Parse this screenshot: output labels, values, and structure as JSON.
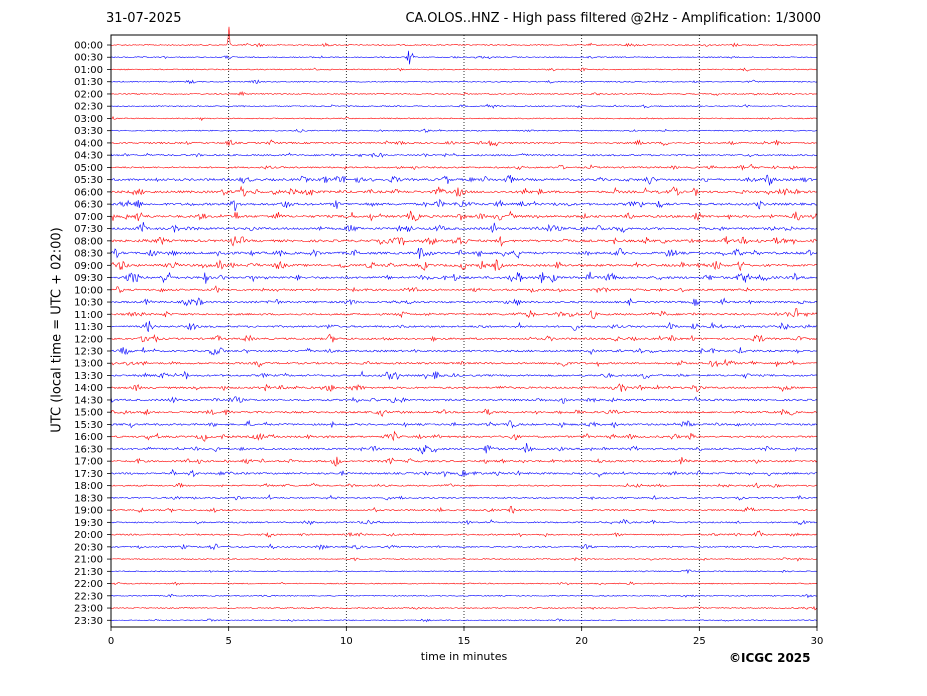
{
  "header": {
    "date": "31-07-2025",
    "title": "CA.OLOS..HNZ - High pass filtered @2Hz - Amplification: 1/3000"
  },
  "footer": {
    "copyright": "©ICGC 2025"
  },
  "colors": {
    "trace_a": "#ff0000",
    "trace_b": "#0000ff",
    "grid": "#000000"
  },
  "chart_data": {
    "type": "line",
    "subtype": "helicorder",
    "xlabel": "time in minutes",
    "ylabel": "UTC (local time = UTC + 02:00)",
    "xlim": [
      0,
      30
    ],
    "x_ticks": [
      0,
      5,
      10,
      15,
      20,
      25,
      30
    ],
    "x_tick_labels": [
      "0",
      "5",
      "10",
      "15",
      "20",
      "25",
      "30"
    ],
    "row_labels": [
      "00:00",
      "00:30",
      "01:00",
      "01:30",
      "02:00",
      "02:30",
      "03:00",
      "03:30",
      "04:00",
      "04:30",
      "05:00",
      "05:30",
      "06:00",
      "06:30",
      "07:00",
      "07:30",
      "08:00",
      "08:30",
      "09:00",
      "09:30",
      "10:00",
      "10:30",
      "11:00",
      "11:30",
      "12:00",
      "12:30",
      "13:00",
      "13:30",
      "14:00",
      "14:30",
      "15:00",
      "15:30",
      "16:00",
      "16:30",
      "17:00",
      "17:30",
      "18:00",
      "18:30",
      "19:00",
      "19:30",
      "20:00",
      "20:30",
      "21:00",
      "21:30",
      "22:00",
      "22:30",
      "23:00",
      "23:30"
    ],
    "row_colors": [
      "red",
      "blue",
      "red",
      "blue",
      "red",
      "blue",
      "red",
      "blue",
      "red",
      "blue",
      "red",
      "blue",
      "red",
      "blue",
      "red",
      "blue",
      "red",
      "blue",
      "red",
      "blue",
      "red",
      "blue",
      "red",
      "blue",
      "red",
      "blue",
      "red",
      "blue",
      "red",
      "blue",
      "red",
      "blue",
      "red",
      "blue",
      "red",
      "blue",
      "red",
      "blue",
      "red",
      "blue",
      "red",
      "blue",
      "red",
      "blue",
      "red",
      "blue",
      "red",
      "blue"
    ],
    "vertical_gridlines_minutes": [
      5,
      10,
      15,
      20,
      25
    ],
    "grid": "dotted vertical",
    "notable_events": [
      {
        "row": "00:00",
        "minute": 5.0,
        "description": "large saturated spike"
      },
      {
        "row": "00:30",
        "minute": 12.7
      },
      {
        "row": "09:30",
        "minute": 17.3
      },
      {
        "row": "09:30",
        "minute": 21.3
      },
      {
        "row": "07:30",
        "minute": 1.3
      },
      {
        "row": "16:30",
        "minute": 17.7
      }
    ]
  }
}
